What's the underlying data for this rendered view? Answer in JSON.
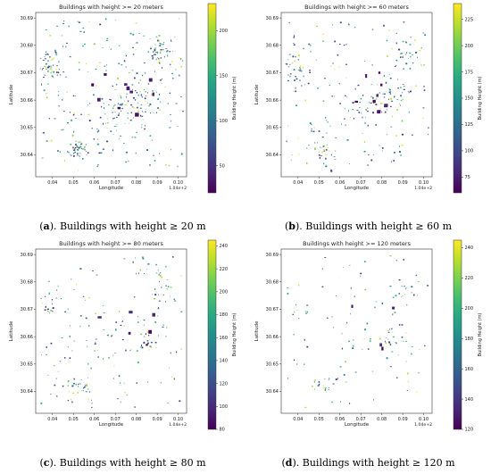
{
  "chart_data": [
    {
      "type": "scatter",
      "title": "Buildings with height >= 20 meters",
      "caption_letter": "a",
      "caption_text": "). Buildings with height  ≥  20 m",
      "xlabel": "Longitude",
      "ylabel": "Latitude",
      "x_offset_label": "1.04e+2",
      "xticks": [
        "0.04",
        "0.05",
        "0.06",
        "0.07",
        "0.08",
        "0.09",
        "0.10"
      ],
      "yticks": [
        "30.69",
        "30.68",
        "30.67",
        "30.66",
        "30.65",
        "30.64"
      ],
      "xlim": [
        0.032,
        0.104
      ],
      "ylim": [
        30.632,
        30.692
      ],
      "colorbar": {
        "label": "Building Height (m)",
        "ticks": [
          50,
          100,
          150,
          200
        ],
        "range": [
          20,
          230
        ]
      },
      "density": 430,
      "extents": {
        "x": [
          0.034,
          0.102
        ],
        "y": [
          30.634,
          30.69
        ]
      }
    },
    {
      "type": "scatter",
      "title": "Buildings with height >= 60 meters",
      "caption_letter": "b",
      "caption_text": "). Buildings with height  ≥  60 m",
      "xlabel": "Longitude",
      "ylabel": "Latitude",
      "x_offset_label": "1.04e+2",
      "xticks": [
        "0.04",
        "0.05",
        "0.06",
        "0.07",
        "0.08",
        "0.09",
        "0.10"
      ],
      "yticks": [
        "30.69",
        "30.68",
        "30.67",
        "30.66",
        "30.65",
        "30.64"
      ],
      "xlim": [
        0.032,
        0.104
      ],
      "ylim": [
        30.632,
        30.692
      ],
      "colorbar": {
        "label": "Building Height (m)",
        "ticks": [
          75,
          100,
          125,
          150,
          175,
          200,
          225
        ],
        "range": [
          60,
          240
        ]
      },
      "density": 300,
      "extents": {
        "x": [
          0.034,
          0.102
        ],
        "y": [
          30.634,
          30.69
        ]
      }
    },
    {
      "type": "scatter",
      "title": "Buildings with height >= 80 meters",
      "caption_letter": "c",
      "caption_text": "). Buildings with height  ≥  80 m",
      "xlabel": "Longitude",
      "ylabel": "Latitude",
      "x_offset_label": "1.04e+2",
      "xticks": [
        "0.04",
        "0.05",
        "0.06",
        "0.07",
        "0.08",
        "0.09",
        "0.10"
      ],
      "yticks": [
        "30.69",
        "30.68",
        "30.67",
        "30.66",
        "30.65",
        "30.64"
      ],
      "xlim": [
        0.032,
        0.104
      ],
      "ylim": [
        30.632,
        30.692
      ],
      "colorbar": {
        "label": "Building Height (m)",
        "ticks": [
          80,
          100,
          120,
          140,
          160,
          180,
          200,
          220,
          240
        ],
        "range": [
          80,
          245
        ]
      },
      "density": 230,
      "extents": {
        "x": [
          0.034,
          0.102
        ],
        "y": [
          30.634,
          30.69
        ]
      }
    },
    {
      "type": "scatter",
      "title": "Buildings with height >= 120 meters",
      "caption_letter": "d",
      "caption_text": "). Buildings with height  ≥  120 m",
      "xlabel": "Longitude",
      "ylabel": "Latitude",
      "x_offset_label": "1.04e+2",
      "xticks": [
        "0.04",
        "0.05",
        "0.06",
        "0.07",
        "0.08",
        "0.09",
        "0.10"
      ],
      "yticks": [
        "30.69",
        "30.68",
        "30.67",
        "30.66",
        "30.65",
        "30.64"
      ],
      "xlim": [
        0.032,
        0.104
      ],
      "ylim": [
        30.632,
        30.692
      ],
      "colorbar": {
        "label": "Building Height (m)",
        "ticks": [
          120,
          140,
          160,
          180,
          200,
          220,
          240
        ],
        "range": [
          120,
          245
        ]
      },
      "density": 150,
      "extents": {
        "x": [
          0.034,
          0.102
        ],
        "y": [
          30.634,
          30.69
        ]
      }
    }
  ]
}
